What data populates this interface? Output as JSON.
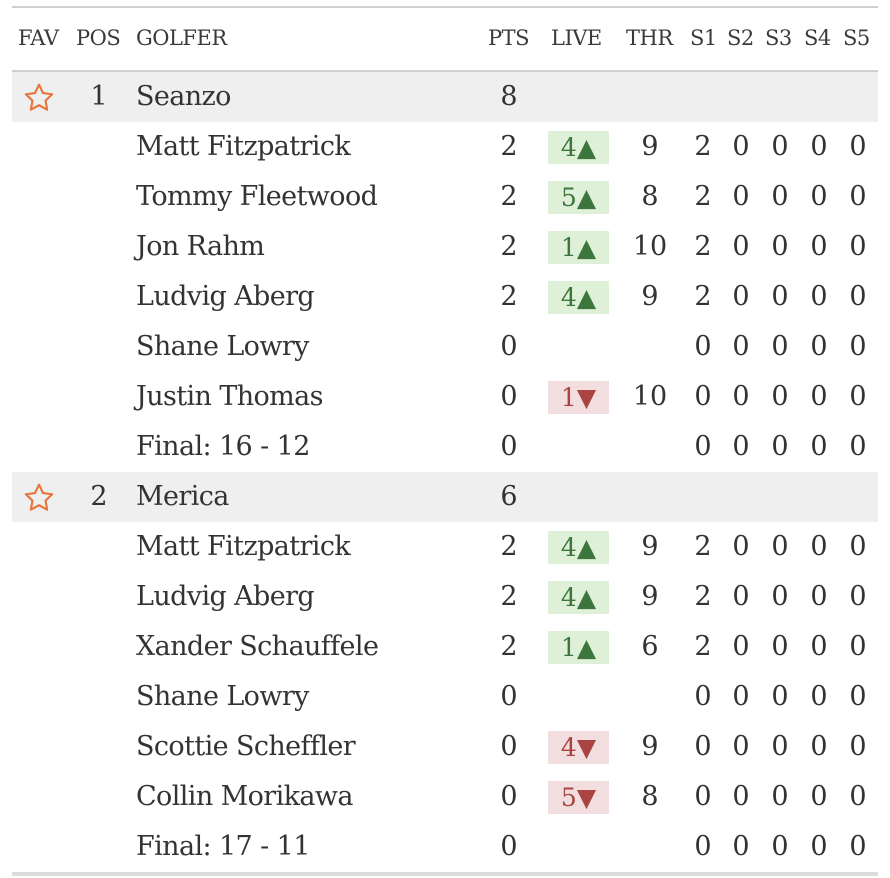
{
  "colors": {
    "star": "#e8743b",
    "up_bg": "#dff0d8",
    "up_fg": "#3c763d",
    "down_bg": "#f2dede",
    "down_fg": "#a94442",
    "team_bg": "#efefef"
  },
  "header": {
    "fav": "FAV",
    "pos": "POS",
    "golfer": "GOLFER",
    "pts": "PTS",
    "live": "LIVE",
    "thr": "THR",
    "s1": "S1",
    "s2": "S2",
    "s3": "S3",
    "s4": "S4",
    "s5": "S5"
  },
  "teams": [
    {
      "pos": "1",
      "name": "Seanzo",
      "pts": "8",
      "golfers": [
        {
          "name": "Matt Fitzpatrick",
          "pts": "2",
          "live": "4▲",
          "dir": "up",
          "thr": "9",
          "s": [
            "2",
            "0",
            "0",
            "0",
            "0"
          ]
        },
        {
          "name": "Tommy Fleetwood",
          "pts": "2",
          "live": "5▲",
          "dir": "up",
          "thr": "8",
          "s": [
            "2",
            "0",
            "0",
            "0",
            "0"
          ]
        },
        {
          "name": "Jon Rahm",
          "pts": "2",
          "live": "1▲",
          "dir": "up",
          "thr": "10",
          "s": [
            "2",
            "0",
            "0",
            "0",
            "0"
          ]
        },
        {
          "name": "Ludvig Aberg",
          "pts": "2",
          "live": "4▲",
          "dir": "up",
          "thr": "9",
          "s": [
            "2",
            "0",
            "0",
            "0",
            "0"
          ]
        },
        {
          "name": "Shane Lowry",
          "pts": "0",
          "live": "",
          "dir": "",
          "thr": "",
          "s": [
            "0",
            "0",
            "0",
            "0",
            "0"
          ]
        },
        {
          "name": "Justin Thomas",
          "pts": "0",
          "live": "1▼",
          "dir": "down",
          "thr": "10",
          "s": [
            "0",
            "0",
            "0",
            "0",
            "0"
          ]
        },
        {
          "name": "Final: 16 - 12",
          "pts": "0",
          "live": "",
          "dir": "",
          "thr": "",
          "s": [
            "0",
            "0",
            "0",
            "0",
            "0"
          ]
        }
      ]
    },
    {
      "pos": "2",
      "name": "Merica",
      "pts": "6",
      "golfers": [
        {
          "name": "Matt Fitzpatrick",
          "pts": "2",
          "live": "4▲",
          "dir": "up",
          "thr": "9",
          "s": [
            "2",
            "0",
            "0",
            "0",
            "0"
          ]
        },
        {
          "name": "Ludvig Aberg",
          "pts": "2",
          "live": "4▲",
          "dir": "up",
          "thr": "9",
          "s": [
            "2",
            "0",
            "0",
            "0",
            "0"
          ]
        },
        {
          "name": "Xander Schauffele",
          "pts": "2",
          "live": "1▲",
          "dir": "up",
          "thr": "6",
          "s": [
            "2",
            "0",
            "0",
            "0",
            "0"
          ]
        },
        {
          "name": "Shane Lowry",
          "pts": "0",
          "live": "",
          "dir": "",
          "thr": "",
          "s": [
            "0",
            "0",
            "0",
            "0",
            "0"
          ]
        },
        {
          "name": "Scottie Scheffler",
          "pts": "0",
          "live": "4▼",
          "dir": "down",
          "thr": "9",
          "s": [
            "0",
            "0",
            "0",
            "0",
            "0"
          ]
        },
        {
          "name": "Collin Morikawa",
          "pts": "0",
          "live": "5▼",
          "dir": "down",
          "thr": "8",
          "s": [
            "0",
            "0",
            "0",
            "0",
            "0"
          ]
        },
        {
          "name": "Final: 17 - 11",
          "pts": "0",
          "live": "",
          "dir": "",
          "thr": "",
          "s": [
            "0",
            "0",
            "0",
            "0",
            "0"
          ]
        }
      ]
    }
  ]
}
